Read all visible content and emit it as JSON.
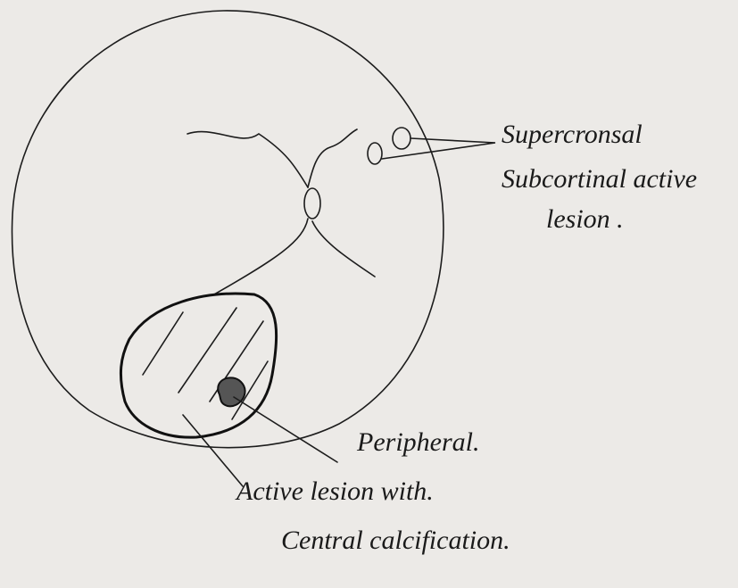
{
  "labels": {
    "top": [
      "Supercronsal",
      "Subcortinal active",
      "lesion ."
    ],
    "bottom": [
      "Peripheral.",
      "Active lesion with.",
      "Central calcification."
    ]
  }
}
